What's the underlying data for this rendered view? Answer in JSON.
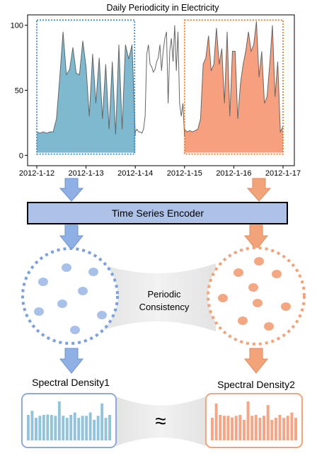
{
  "chart_data": {
    "type": "area",
    "title": "Daily Periodicity in Electricity",
    "x_tick_labels": [
      "2012-1-12",
      "2012-1-13",
      "2012-1-14",
      "2012-1-15",
      "2012-1-16",
      "2012-1-17"
    ],
    "y_ticks": [
      0,
      50,
      100
    ],
    "ylim": [
      -8,
      108
    ],
    "grid": false,
    "series": [
      {
        "values": [
          18,
          17,
          18,
          17,
          18,
          18,
          28,
          60,
          95,
          62,
          66,
          83,
          63,
          62,
          88,
          68,
          30,
          78,
          40,
          75,
          28,
          70,
          20,
          72,
          16,
          85,
          20,
          85,
          74,
          85,
          15
        ]
      },
      {
        "values": [
          18,
          20,
          18,
          18,
          17,
          20,
          30,
          78,
          85,
          70,
          68,
          64,
          66,
          72,
          75,
          85,
          65,
          80,
          90,
          95,
          40,
          80,
          90,
          72,
          100,
          65,
          95,
          40,
          30,
          40,
          15
        ]
      },
      {
        "values": [
          20,
          18,
          19,
          18,
          19,
          20,
          28,
          70,
          75,
          92,
          65,
          70,
          98,
          70,
          82,
          40,
          95,
          30,
          80,
          80,
          28,
          55,
          70,
          80,
          95,
          80,
          85,
          103,
          60,
          80,
          40,
          45,
          70,
          100,
          45,
          72,
          18,
          22
        ]
      }
    ],
    "highlight_colors": {
      "left": "#7fb9d0",
      "right": "#f6a07f"
    }
  },
  "arrows_colors": {
    "blue": "#8fb0e4",
    "orange": "#f3a37a"
  },
  "encoder": {
    "label": "Time Series Encoder",
    "fill": "#aec2e8"
  },
  "center_text": {
    "line1": "Periodic",
    "line2": "Consistency"
  },
  "spectral": {
    "left_title": "Spectral Density1",
    "right_title": "Spectral Density2",
    "approx_symbol": "≈",
    "left_bars": [
      0.62,
      0.72,
      0.55,
      0.6,
      0.62,
      0.63,
      0.62,
      0.6,
      0.95,
      0.6,
      0.55,
      0.62,
      0.68,
      0.55,
      0.6,
      0.6,
      0.68,
      0.5,
      0.6,
      0.9,
      0.55,
      0.62
    ],
    "right_bars": [
      0.55,
      0.9,
      0.62,
      0.6,
      0.6,
      0.56,
      0.6,
      0.62,
      0.5,
      0.95,
      0.6,
      0.62,
      0.55,
      0.6,
      0.86,
      0.5,
      0.55,
      0.62,
      0.55,
      0.6,
      0.68,
      0.55
    ]
  },
  "clusters": {
    "left": {
      "dot": "#a9c0ea",
      "border": "#7c9fde"
    },
    "right": {
      "dot": "#f4a783",
      "border": "#f3a37a"
    }
  }
}
